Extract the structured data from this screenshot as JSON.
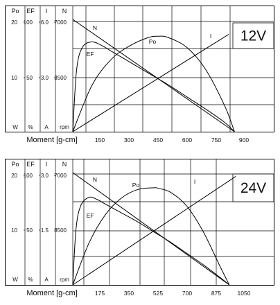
{
  "chart_data": [
    {
      "type": "line",
      "voltage_label": "12V",
      "left_axes": [
        {
          "header": "Po",
          "ticks": [
            "20",
            "10"
          ],
          "unit": "W"
        },
        {
          "header": "EF",
          "ticks": [
            "100",
            "50"
          ],
          "unit": "%"
        },
        {
          "header": "I",
          "ticks": [
            "6.0",
            "3.0"
          ],
          "unit": "A"
        },
        {
          "header": "N",
          "ticks": [
            "7000",
            "3500"
          ],
          "unit": "rpm"
        }
      ],
      "xlabel": "Moment [g-cm]",
      "x_ticks": [
        "150",
        "300",
        "450",
        "600",
        "750",
        "900"
      ],
      "xlim": [
        0,
        900
      ],
      "grid": true,
      "series": [
        {
          "name": "N",
          "unit": "rpm",
          "x": [
            0,
            850
          ],
          "y": [
            7000,
            0
          ]
        },
        {
          "name": "I",
          "unit": "A",
          "x": [
            0,
            820
          ],
          "y": [
            0,
            5.2
          ]
        },
        {
          "name": "Po",
          "unit": "W",
          "x": [
            0,
            100,
            200,
            300,
            400,
            450,
            500,
            600,
            700,
            800,
            850
          ],
          "y": [
            0,
            8.2,
            12.8,
            15.3,
            16.8,
            17.0,
            16.8,
            15.0,
            11.0,
            4.5,
            0
          ]
        },
        {
          "name": "EF",
          "unit": "%",
          "x": [
            0,
            20,
            50,
            100,
            150,
            200,
            300,
            400,
            500,
            600,
            700,
            800,
            850
          ],
          "y": [
            0,
            55,
            75,
            80,
            77,
            72,
            62,
            52,
            42,
            31,
            20,
            8,
            0
          ]
        }
      ]
    },
    {
      "type": "line",
      "voltage_label": "24V",
      "left_axes": [
        {
          "header": "Po",
          "ticks": [
            "20",
            "10"
          ],
          "unit": "W"
        },
        {
          "header": "EF",
          "ticks": [
            "100",
            "50"
          ],
          "unit": "%"
        },
        {
          "header": "I",
          "ticks": [
            "3.0",
            "1.5"
          ],
          "unit": "A"
        },
        {
          "header": "N",
          "ticks": [
            "7000",
            "3500"
          ],
          "unit": "rpm"
        }
      ],
      "xlabel": "Moment [g-cm]",
      "x_ticks": [
        "175",
        "350",
        "525",
        "700",
        "875",
        "1050"
      ],
      "xlim": [
        0,
        1050
      ],
      "grid": true,
      "series": [
        {
          "name": "N",
          "unit": "rpm",
          "x": [
            0,
            960
          ],
          "y": [
            7000,
            0
          ]
        },
        {
          "name": "I",
          "unit": "A",
          "x": [
            0,
            1000
          ],
          "y": [
            0,
            2.9
          ]
        },
        {
          "name": "Po",
          "unit": "W",
          "x": [
            0,
            100,
            200,
            300,
            400,
            500,
            525,
            600,
            700,
            800,
            900,
            960
          ],
          "y": [
            0,
            7.5,
            12.5,
            15.5,
            17.0,
            17.3,
            17.2,
            16.5,
            14.0,
            9.5,
            3.5,
            0
          ]
        },
        {
          "name": "EF",
          "unit": "%",
          "x": [
            0,
            20,
            50,
            100,
            150,
            200,
            300,
            400,
            500,
            600,
            700,
            800,
            900,
            960
          ],
          "y": [
            0,
            50,
            71,
            78,
            76,
            72,
            64,
            56,
            47,
            38,
            28,
            18,
            7,
            0
          ]
        }
      ]
    }
  ]
}
